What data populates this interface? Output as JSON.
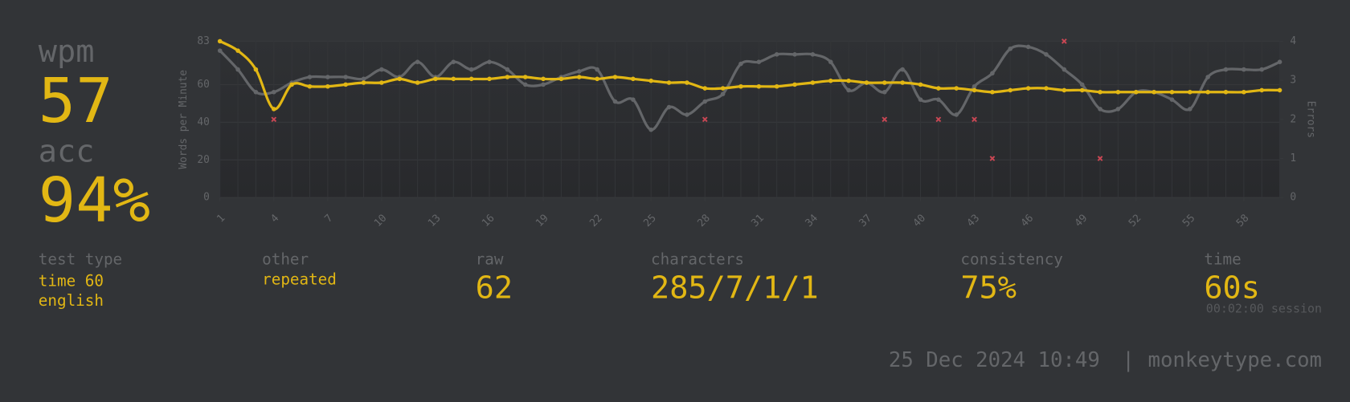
{
  "stats": {
    "wpm": {
      "label": "wpm",
      "value": "57"
    },
    "acc": {
      "label": "acc",
      "value": "94%"
    },
    "test_type": {
      "label": "test type",
      "lines": [
        "time 60",
        "english"
      ]
    },
    "other": {
      "label": "other",
      "value": "repeated"
    },
    "raw": {
      "label": "raw",
      "value": "62"
    },
    "characters": {
      "label": "characters",
      "value": "285/7/1/1"
    },
    "consistency": {
      "label": "consistency",
      "value": "75%"
    },
    "time": {
      "label": "time",
      "value": "60s",
      "note": "00:02:00 session"
    }
  },
  "footer": {
    "date": "25 Dec 2024 10:49",
    "separator": "|",
    "site": "monkeytype.com"
  },
  "chart_data": {
    "type": "line",
    "ylabel": "Words per Minute",
    "y2label": "Errors",
    "x": [
      1,
      2,
      3,
      4,
      5,
      6,
      7,
      8,
      9,
      10,
      11,
      12,
      13,
      14,
      15,
      16,
      17,
      18,
      19,
      20,
      21,
      22,
      23,
      24,
      25,
      26,
      27,
      28,
      29,
      30,
      31,
      32,
      33,
      34,
      35,
      36,
      37,
      38,
      39,
      40,
      41,
      42,
      43,
      44,
      45,
      46,
      47,
      48,
      49,
      50,
      51,
      52,
      53,
      54,
      55,
      56,
      57,
      58,
      59,
      60
    ],
    "xlim": [
      1,
      60
    ],
    "xticks": [
      1,
      4,
      7,
      10,
      13,
      16,
      19,
      22,
      25,
      28,
      31,
      34,
      37,
      40,
      43,
      46,
      49,
      52,
      55,
      58
    ],
    "ylim": [
      0,
      83
    ],
    "yticks": [
      0,
      20,
      40,
      60,
      83
    ],
    "y2lim": [
      0,
      4
    ],
    "y2ticks": [
      0,
      1,
      2,
      3,
      4
    ],
    "grid": true,
    "series": [
      {
        "color": "#646669",
        "values": [
          78,
          68,
          56,
          56,
          61,
          64,
          64,
          64,
          63,
          68,
          64,
          72,
          64,
          72,
          68,
          72,
          68,
          60,
          60,
          64,
          67,
          68,
          51,
          52,
          36,
          48,
          44,
          51,
          55,
          71,
          72,
          76,
          76,
          76,
          72,
          57,
          61,
          56,
          68,
          52,
          52,
          44,
          59,
          66,
          79,
          80,
          76,
          68,
          60,
          47,
          47,
          56,
          56,
          52,
          47,
          64,
          68,
          68,
          68,
          72
        ]
      },
      {
        "color": "#e2b714",
        "values": [
          83,
          78,
          68,
          47,
          60,
          59,
          59,
          60,
          61,
          61,
          63,
          61,
          63,
          63,
          63,
          63,
          64,
          64,
          63,
          63,
          64,
          63,
          64,
          63,
          62,
          61,
          61,
          58,
          58,
          59,
          59,
          59,
          60,
          61,
          62,
          62,
          61,
          61,
          61,
          60,
          58,
          58,
          57,
          56,
          57,
          58,
          58,
          57,
          57,
          56,
          56,
          56,
          56,
          56,
          56,
          56,
          56,
          56,
          57,
          57
        ]
      },
      {
        "color": "#ca4754",
        "axis": "y2",
        "marker": "x",
        "x": [
          4,
          28,
          38,
          41,
          43,
          44,
          48,
          50
        ],
        "values": [
          2,
          2,
          2,
          2,
          2,
          1,
          4,
          1
        ]
      }
    ]
  }
}
